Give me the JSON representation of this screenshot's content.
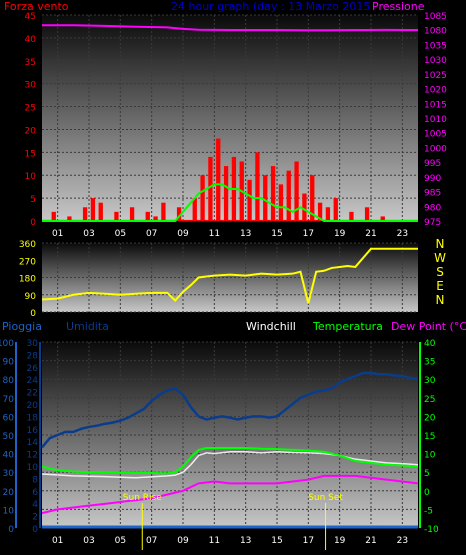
{
  "page": {
    "background": "#000000"
  },
  "colors": {
    "wind": "#ff0000",
    "pressure": "#ff00ff",
    "gust": "#00ff00",
    "title": "#0000cc",
    "direction": "#ffff00",
    "rain": "#1e64c8",
    "humidity": "#0a3c8c",
    "windchill": "#ffffff",
    "temperature": "#00ff00",
    "dewpoint": "#ff00ff",
    "sun": "#ffff00",
    "hour_labels": "#ffffff",
    "direction_labels": "#ffff00"
  },
  "header": {
    "left": "Forza vento",
    "title": "24 hour graph (day : 13 Marzo 2015",
    "right": "Pressione"
  },
  "hours": [
    "01",
    "03",
    "05",
    "07",
    "09",
    "11",
    "13",
    "15",
    "17",
    "19",
    "21",
    "23"
  ],
  "chart_data": [
    {
      "type": "bar",
      "name": "wind",
      "series": [
        {
          "name": "Forza vento",
          "x": [
            0,
            0.5,
            1,
            1.5,
            2,
            2.5,
            3,
            3.5,
            4,
            4.5,
            5,
            5.5,
            6,
            6.5,
            7,
            7.5,
            8,
            8.5,
            9,
            9.5,
            10,
            10.5,
            11,
            11.5,
            12,
            12.5,
            13,
            13.5,
            14,
            14.5,
            15,
            15.5,
            16,
            16.5,
            17,
            17.5,
            18,
            18.5,
            19,
            19.5,
            20,
            20.5,
            21,
            21.5,
            22,
            22.5,
            23,
            23.5
          ],
          "values": [
            0,
            2,
            0,
            1,
            0,
            3,
            5,
            4,
            0,
            2,
            0,
            3,
            0,
            2,
            1,
            4,
            0,
            3,
            0,
            5,
            10,
            14,
            18,
            12,
            14,
            13,
            9,
            15,
            10,
            12,
            8,
            11,
            13,
            6,
            10,
            4,
            3,
            5,
            0,
            2,
            0,
            3,
            0,
            1,
            0,
            0,
            0,
            0
          ]
        },
        {
          "name": "Raffica",
          "x": [
            0,
            8.5,
            9,
            9.5,
            10,
            10.5,
            11,
            11.5,
            12,
            12.5,
            13,
            13.5,
            14,
            14.5,
            15,
            15.5,
            16,
            16.5,
            17,
            17.5,
            18,
            18.5,
            24
          ],
          "values": [
            0,
            0,
            2,
            4,
            6,
            7,
            8,
            8,
            7,
            7,
            6,
            5,
            5,
            4,
            3,
            3,
            2,
            3,
            2,
            1,
            0,
            0,
            0
          ]
        },
        {
          "name": "Pressione",
          "x": [
            0,
            2,
            4,
            6,
            8,
            9,
            10,
            11,
            12,
            13,
            14,
            15,
            16,
            17,
            18,
            19,
            20,
            21,
            22,
            23,
            24
          ],
          "values": [
            1081.5,
            1081.5,
            1081.3,
            1081,
            1080.8,
            1080.3,
            1079.8,
            1079.5,
            1079.3,
            1079.2,
            1079.2,
            1079,
            1078.6,
            1078.5,
            1078.5,
            1078.7,
            1079,
            1079.2,
            1079.4,
            1079.3,
            1079.2
          ]
        }
      ],
      "ylim": [
        0,
        45
      ],
      "y2lim": [
        975,
        1085
      ],
      "y_ticks": [
        "0",
        "5",
        "10",
        "15",
        "20",
        "25",
        "30",
        "35",
        "40",
        "45"
      ],
      "y2_ticks": [
        "975",
        "980",
        "985",
        "990",
        "995",
        "1000",
        "1005",
        "1010",
        "1015",
        "1020",
        "1025",
        "1030",
        "1035",
        "1080",
        "1085"
      ]
    },
    {
      "type": "line",
      "name": "direction",
      "series": [
        {
          "name": "direzione",
          "x": [
            0,
            1,
            2,
            3,
            4,
            5,
            6,
            7,
            8,
            8.5,
            9,
            9.5,
            10,
            10.5,
            11,
            12,
            13,
            14,
            15,
            16,
            16.5,
            17,
            17.5,
            18,
            18.5,
            19,
            19.5,
            20,
            21,
            22,
            23,
            24
          ],
          "values": [
            65,
            70,
            90,
            100,
            95,
            90,
            95,
            100,
            100,
            60,
            105,
            140,
            180,
            185,
            190,
            195,
            190,
            200,
            195,
            200,
            210,
            45,
            210,
            215,
            230,
            235,
            240,
            235,
            330,
            330,
            330,
            330
          ]
        }
      ],
      "ylim": [
        0,
        360
      ],
      "y_ticks": [
        "0",
        "90",
        "180",
        "270",
        "360"
      ],
      "direction_labels": [
        "N",
        "W",
        "S",
        "E",
        "N"
      ]
    },
    {
      "type": "line",
      "name": "temperature",
      "labels": {
        "rain": "Pioggia",
        "humidity": "Umidita",
        "windchill": "Windchill",
        "temperature": "Temperatura",
        "dewpoint": "Dew Point (°C)"
      },
      "sun": {
        "rise_label": "Sun Rise",
        "set_label": "Sun Set",
        "rise_hour": 6.4,
        "set_hour": 18.1
      },
      "ylim_rain": [
        0,
        100
      ],
      "ylim_humidity": [
        0,
        30
      ],
      "ylim_temp": [
        -10,
        40
      ],
      "rain_ticks": [
        "0",
        "10",
        "20",
        "30",
        "40",
        "50",
        "60",
        "70",
        "80",
        "90",
        "100"
      ],
      "humidity_ticks": [
        "0",
        "2",
        "4",
        "6",
        "8",
        "10",
        "12",
        "14",
        "16",
        "18",
        "20",
        "22",
        "24",
        "26",
        "28",
        "30"
      ],
      "temp_ticks": [
        "-10",
        "-5",
        "0",
        "5",
        "10",
        "15",
        "20",
        "25",
        "30",
        "35",
        "40"
      ],
      "series": [
        {
          "name": "Pioggia",
          "x": [
            0,
            24
          ],
          "values": [
            0,
            0
          ]
        },
        {
          "name": "Umidita",
          "x": [
            0,
            0.5,
            1,
            1.5,
            2,
            2.5,
            3,
            3.5,
            4,
            4.5,
            5,
            5.5,
            6,
            6.5,
            7,
            7.5,
            8,
            8.5,
            9,
            9.5,
            10,
            10.5,
            11,
            11.5,
            12,
            12.5,
            13,
            13.5,
            14,
            14.5,
            15,
            15.5,
            16,
            16.5,
            17,
            17.5,
            18,
            18.5,
            19,
            19.5,
            20,
            20.5,
            21,
            21.5,
            22,
            22.5,
            23,
            23.5,
            24
          ],
          "values": [
            13,
            14.5,
            15,
            15.5,
            15.5,
            16,
            16.3,
            16.5,
            16.8,
            17,
            17.3,
            17.8,
            18.5,
            19.2,
            20.5,
            21.5,
            22.2,
            22.5,
            21.5,
            19.5,
            18,
            17.5,
            17.8,
            18,
            17.8,
            17.5,
            17.8,
            18,
            18,
            17.8,
            18,
            19,
            20,
            21,
            21.5,
            22,
            22.2,
            22.5,
            23.5,
            24,
            24.5,
            25,
            25,
            24.8,
            24.8,
            24.6,
            24.5,
            24.2,
            24
          ]
        },
        {
          "name": "Windchill",
          "x": [
            0,
            2,
            4,
            6,
            8,
            8.5,
            9,
            9.5,
            10,
            10.5,
            11,
            12,
            13,
            14,
            15,
            16,
            17,
            18,
            19,
            20,
            21,
            22,
            23,
            24
          ],
          "values": [
            4.5,
            4,
            3.8,
            3.5,
            4,
            4.2,
            5,
            7,
            9.5,
            10.2,
            10,
            10.5,
            10.5,
            10.2,
            10.5,
            10.3,
            10.2,
            10,
            9.5,
            8.5,
            8,
            7.5,
            7.3,
            7
          ]
        },
        {
          "name": "Temperatura",
          "x": [
            0,
            1,
            2,
            3,
            4,
            5,
            6,
            7,
            8,
            8.5,
            9,
            9.5,
            10,
            10.5,
            11,
            12,
            13,
            14,
            15,
            16,
            17,
            18,
            19,
            20,
            21,
            22,
            23,
            24
          ],
          "values": [
            6.5,
            5.5,
            5.2,
            5,
            5,
            4.9,
            4.8,
            4.8,
            4.7,
            5,
            6.5,
            9,
            11,
            11.5,
            11.5,
            11.5,
            11.5,
            11.3,
            11.2,
            11,
            10.8,
            10.5,
            9.5,
            8,
            7.5,
            7,
            6.8,
            6.5
          ]
        },
        {
          "name": "Dew Point",
          "x": [
            0,
            1,
            2,
            3,
            4,
            5,
            6,
            7,
            8,
            9,
            10,
            11,
            12,
            13,
            14,
            15,
            16,
            17,
            18,
            19,
            20,
            21,
            22,
            23,
            24
          ],
          "values": [
            -6,
            -5,
            -4.5,
            -4,
            -3.5,
            -3,
            -2.5,
            -2,
            -1,
            0,
            2,
            2.5,
            2,
            2,
            2,
            2,
            2.5,
            3,
            4,
            4,
            4,
            3.5,
            3,
            2.5,
            2
          ]
        }
      ]
    }
  ]
}
